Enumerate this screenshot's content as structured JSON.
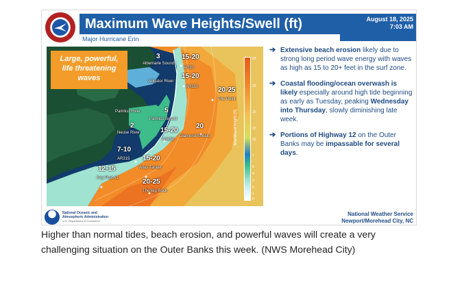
{
  "header": {
    "title": "Maximum Wave Heights/Swell (ft)",
    "subtitle": "Major Hurricane Erin",
    "date": "August 18, 2025",
    "time": "7:03 AM",
    "logo_icon": "nws-logo-icon"
  },
  "map": {
    "callout": [
      "Large, powerful,",
      "life threatening",
      "waves"
    ],
    "place_labels": {
      "albemarle": "Albemarle Sound",
      "alligator": "Alligator River",
      "pamlico_river": "Pamlico River",
      "pamlico_sound": "Pamlico Sound",
      "neuse": "Neuse River",
      "ar30": "AR30",
      "ar150": "AR150",
      "the_point": "The Point",
      "diamond_shoals": "Diamond Shoals",
      "ar250": "AR250",
      "ar315": "AR315",
      "atlas_tanker": "Atlas Tanker",
      "key_post": "Key Post #1",
      "big_rock": "The Big Rock"
    },
    "wave_values": {
      "albemarle": "3",
      "ar30": "15-20",
      "ar150": "15-20",
      "the_point": "20-25",
      "pamlico_sound": "5",
      "neuse": "2",
      "ar250": "15-20",
      "diamond_shoals": "20",
      "ar315": "7-10",
      "atlas_tanker": "15-20",
      "key_post": "12-15",
      "big_rock": "20-25"
    },
    "legend": {
      "title": "MaxWaveHeight (ft)",
      "ticks": [
        "25",
        "20",
        "15",
        "12",
        "10",
        "7",
        "5",
        "4",
        "3",
        "2",
        "1",
        "0"
      ],
      "colors": [
        "#ffffff",
        "#e0f3ff",
        "#9fe3d0",
        "#3ebd8a",
        "#1f7fbf",
        "#d8e05a",
        "#f2c14e",
        "#f28c28",
        "#e45a19"
      ]
    }
  },
  "bullets": [
    {
      "pre": "",
      "bold": "Extensive beach erosion",
      "post": " likely due to strong long period wave energy with waves as high as 15 to 20+ feet in the surf zone."
    },
    {
      "pre": "",
      "bold": "Coastal flooding/ocean overwash is likely",
      "post": " especially around high tide beginning as early as Tuesday, peaking ",
      "bold2": "Wednesday into Thursday",
      "post2": ", slowly diminishing late week."
    },
    {
      "pre": "",
      "bold": "Portions of Highway 12",
      "post": " on the Outer Banks may be ",
      "bold2": "impassable for several days",
      "post2": "."
    }
  ],
  "footer": {
    "org_line1": "National Oceanic and",
    "org_line2": "Atmospheric Administration",
    "dept": "U.S. Department of Commerce",
    "nws_line1": "National Weather Service",
    "nws_line2": "Newport/Morehead City, NC"
  },
  "caption": "Higher than normal tides, beach erosion, and powerful waves will create a very challenging situation on the Outer Banks this week. (NWS Morehead City)"
}
